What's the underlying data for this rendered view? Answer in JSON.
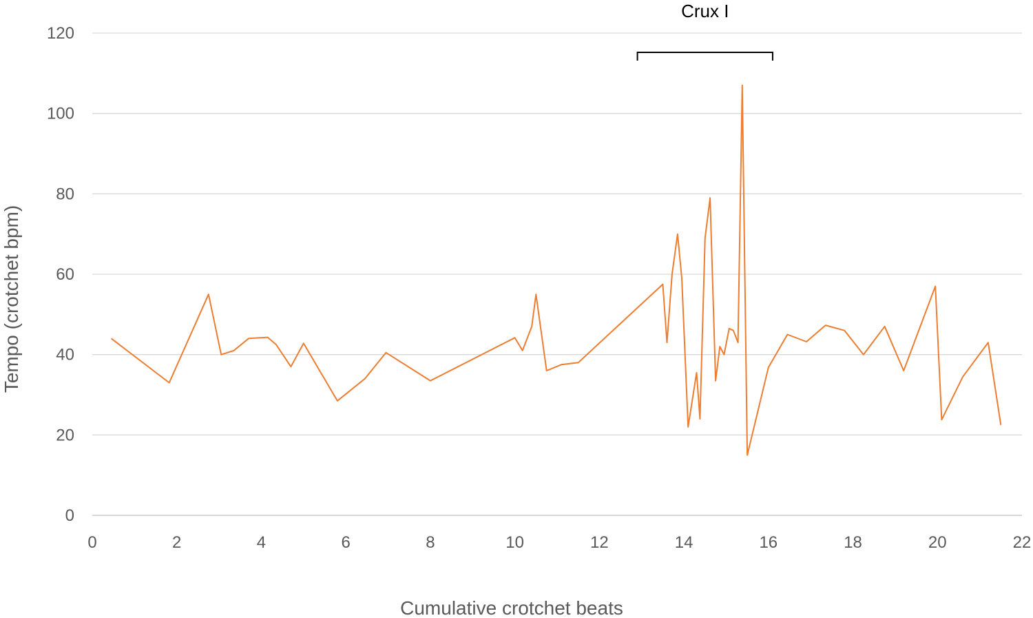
{
  "chart_data": {
    "type": "line",
    "title": "",
    "xlabel": "Cumulative crotchet beats",
    "ylabel": "Tempo (crotchet bpm)",
    "xlim": [
      0,
      22
    ],
    "ylim": [
      0,
      120
    ],
    "xticks": [
      0,
      2,
      4,
      6,
      8,
      10,
      12,
      14,
      16,
      18,
      20,
      22
    ],
    "yticks": [
      0,
      20,
      40,
      60,
      80,
      100,
      120
    ],
    "grid": "horizontal",
    "line_color": "#ed7d31",
    "annotation": {
      "text": "Crux I",
      "x_start": 12.9,
      "x_end": 16.1
    },
    "series": [
      {
        "x": [
          0.45,
          1.82,
          2.75,
          3.05,
          3.35,
          3.7,
          4.15,
          4.35,
          4.7,
          5.0,
          5.8,
          6.45,
          6.95,
          8.0,
          10.0,
          10.18,
          10.4,
          10.5,
          10.75,
          11.1,
          11.5,
          13.5,
          13.6,
          13.72,
          13.85,
          13.95,
          14.1,
          14.3,
          14.38,
          14.5,
          14.62,
          14.75,
          14.85,
          14.95,
          15.07,
          15.17,
          15.28,
          15.38,
          15.5,
          16.0,
          16.45,
          16.9,
          17.35,
          17.8,
          18.25,
          18.75,
          19.2,
          19.95,
          20.1,
          20.6,
          21.2,
          21.5
        ],
        "y": [
          44,
          33,
          55,
          40,
          41,
          44,
          44.3,
          42.5,
          37,
          42.8,
          28.5,
          34,
          40.5,
          33.5,
          44.2,
          41,
          47,
          55,
          36,
          37.5,
          38,
          57.5,
          43,
          60,
          70,
          59,
          22,
          35.5,
          24,
          69,
          79,
          33.5,
          42,
          40,
          46.5,
          46,
          43,
          107,
          15,
          36.8,
          45,
          43.2,
          47.3,
          46,
          40,
          47,
          36,
          57,
          23.8,
          34.5,
          43,
          22.5
        ]
      }
    ]
  }
}
